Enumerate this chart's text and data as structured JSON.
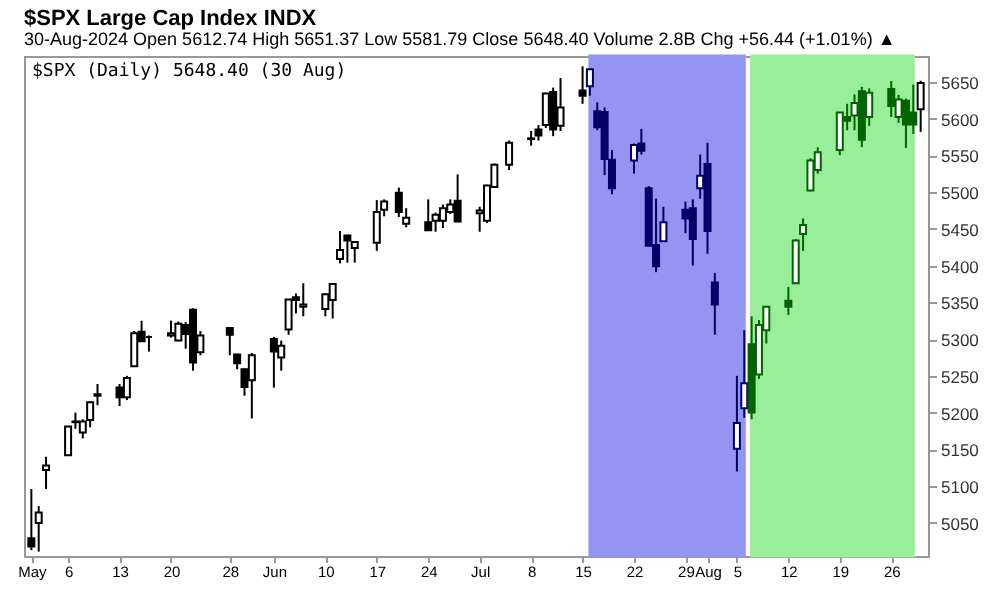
{
  "chart_data": {
    "type": "candlestick",
    "title": "$SPX Large Cap Index INDX",
    "subtitle": "30-Aug-2024  Open 5612.74  High 5651.37  Low 5581.79  Close 5648.40  Volume 2.8B  Chg +56.44 (+1.01%) ▲",
    "annotations": [
      "$SPX (Daily) 5648.40 (30 Aug)"
    ],
    "x": [
      "2024-05-01",
      "2024-05-02",
      "2024-05-03",
      "2024-05-06",
      "2024-05-07",
      "2024-05-08",
      "2024-05-09",
      "2024-05-10",
      "2024-05-13",
      "2024-05-14",
      "2024-05-15",
      "2024-05-16",
      "2024-05-17",
      "2024-05-20",
      "2024-05-21",
      "2024-05-22",
      "2024-05-23",
      "2024-05-24",
      "2024-05-28",
      "2024-05-29",
      "2024-05-30",
      "2024-05-31",
      "2024-06-03",
      "2024-06-04",
      "2024-06-05",
      "2024-06-06",
      "2024-06-07",
      "2024-06-10",
      "2024-06-11",
      "2024-06-12",
      "2024-06-13",
      "2024-06-14",
      "2024-06-17",
      "2024-06-18",
      "2024-06-20",
      "2024-06-21",
      "2024-06-24",
      "2024-06-25",
      "2024-06-26",
      "2024-06-27",
      "2024-06-28",
      "2024-07-01",
      "2024-07-02",
      "2024-07-03",
      "2024-07-05",
      "2024-07-08",
      "2024-07-09",
      "2024-07-10",
      "2024-07-11",
      "2024-07-12",
      "2024-07-15",
      "2024-07-16",
      "2024-07-17",
      "2024-07-18",
      "2024-07-19",
      "2024-07-22",
      "2024-07-23",
      "2024-07-24",
      "2024-07-25",
      "2024-07-26",
      "2024-07-29",
      "2024-07-30",
      "2024-07-31",
      "2024-08-01",
      "2024-08-02",
      "2024-08-05",
      "2024-08-06",
      "2024-08-07",
      "2024-08-08",
      "2024-08-09",
      "2024-08-12",
      "2024-08-13",
      "2024-08-14",
      "2024-08-15",
      "2024-08-16",
      "2024-08-19",
      "2024-08-20",
      "2024-08-21",
      "2024-08-22",
      "2024-08-23",
      "2024-08-26",
      "2024-08-27",
      "2024-08-28",
      "2024-08-29",
      "2024-08-30"
    ],
    "ohlc": [
      [
        5029,
        5096,
        5013,
        5018
      ],
      [
        5050,
        5073,
        5011,
        5064
      ],
      [
        5122,
        5140,
        5096,
        5128
      ],
      [
        5142,
        5181,
        5142,
        5181
      ],
      [
        5187,
        5200,
        5178,
        5188
      ],
      [
        5173,
        5191,
        5165,
        5188
      ],
      [
        5190,
        5215,
        5180,
        5214
      ],
      [
        5225,
        5239,
        5210,
        5223
      ],
      [
        5234,
        5239,
        5209,
        5221
      ],
      [
        5221,
        5250,
        5217,
        5247
      ],
      [
        5263,
        5311,
        5263,
        5308
      ],
      [
        5310,
        5325,
        5297,
        5297
      ],
      [
        5303,
        5305,
        5283,
        5303
      ],
      [
        5305,
        5325,
        5302,
        5308
      ],
      [
        5298,
        5324,
        5297,
        5321
      ],
      [
        5319,
        5323,
        5287,
        5307
      ],
      [
        5340,
        5342,
        5257,
        5268
      ],
      [
        5282,
        5311,
        5278,
        5305
      ],
      [
        5315,
        5316,
        5278,
        5306
      ],
      [
        5279,
        5280,
        5259,
        5267
      ],
      [
        5259,
        5260,
        5223,
        5235
      ],
      [
        5244,
        5281,
        5192,
        5278
      ],
      [
        5300,
        5303,
        5234,
        5283
      ],
      [
        5275,
        5298,
        5257,
        5291
      ],
      [
        5313,
        5354,
        5306,
        5354
      ],
      [
        5357,
        5362,
        5335,
        5353
      ],
      [
        5344,
        5376,
        5331,
        5347
      ],
      [
        5341,
        5362,
        5331,
        5361
      ],
      [
        5353,
        5375,
        5328,
        5375
      ],
      [
        5409,
        5447,
        5403,
        5421
      ],
      [
        5441,
        5442,
        5404,
        5434
      ],
      [
        5424,
        5432,
        5404,
        5432
      ],
      [
        5431,
        5489,
        5420,
        5473
      ],
      [
        5476,
        5490,
        5467,
        5487
      ],
      [
        5499,
        5506,
        5466,
        5473
      ],
      [
        5457,
        5478,
        5452,
        5465
      ],
      [
        5459,
        5490,
        5447,
        5448
      ],
      [
        5461,
        5472,
        5446,
        5469
      ],
      [
        5461,
        5483,
        5451,
        5478
      ],
      [
        5473,
        5490,
        5470,
        5483
      ],
      [
        5488,
        5524,
        5460,
        5460
      ],
      [
        5471,
        5480,
        5446,
        5475
      ],
      [
        5461,
        5510,
        5458,
        5509
      ],
      [
        5507,
        5539,
        5507,
        5537
      ],
      [
        5537,
        5570,
        5530,
        5567
      ],
      [
        5572,
        5583,
        5563,
        5573
      ],
      [
        5585,
        5591,
        5570,
        5577
      ],
      [
        5591,
        5635,
        5587,
        5634
      ],
      [
        5636,
        5642,
        5576,
        5585
      ],
      [
        5590,
        5655,
        5583,
        5615
      ],
      [
        5638,
        5671,
        5620,
        5631
      ],
      [
        5644,
        5667,
        5631,
        5667
      ],
      [
        5610,
        5622,
        5584,
        5588
      ],
      [
        5609,
        5615,
        5523,
        5545
      ],
      [
        5544,
        5557,
        5497,
        5505
      ],
      [
        5543,
        5566,
        5525,
        5564
      ],
      [
        5566,
        5586,
        5551,
        5556
      ],
      [
        5505,
        5508,
        5427,
        5427
      ],
      [
        5428,
        5491,
        5391,
        5399
      ],
      [
        5433,
        5480,
        5433,
        5459
      ],
      [
        5476,
        5487,
        5444,
        5464
      ],
      [
        5478,
        5490,
        5400,
        5436
      ],
      [
        5505,
        5551,
        5491,
        5522
      ],
      [
        5538,
        5567,
        5416,
        5447
      ],
      [
        5377,
        5390,
        5306,
        5347
      ],
      [
        5151,
        5250,
        5120,
        5186
      ],
      [
        5206,
        5312,
        5193,
        5240
      ],
      [
        5293,
        5331,
        5191,
        5200
      ],
      [
        5252,
        5326,
        5246,
        5319
      ],
      [
        5312,
        5345,
        5294,
        5344
      ],
      [
        5352,
        5371,
        5333,
        5344
      ],
      [
        5376,
        5436,
        5376,
        5434
      ],
      [
        5443,
        5464,
        5420,
        5455
      ],
      [
        5502,
        5546,
        5501,
        5543
      ],
      [
        5530,
        5561,
        5525,
        5554
      ],
      [
        5557,
        5608,
        5550,
        5608
      ],
      [
        5602,
        5620,
        5584,
        5597
      ],
      [
        5604,
        5633,
        5584,
        5621
      ],
      [
        5637,
        5643,
        5561,
        5571
      ],
      [
        5602,
        5641,
        5590,
        5635
      ],
      [
        5640,
        5651,
        5602,
        5617
      ],
      [
        5602,
        5632,
        5594,
        5626
      ],
      [
        5624,
        5627,
        5560,
        5592
      ],
      [
        5608,
        5646,
        5579,
        5592
      ],
      [
        5612.74,
        5651.37,
        5581.79,
        5648.4
      ]
    ],
    "colors": [
      "#000000",
      "#000000",
      "#000000",
      "#000000",
      "#000000",
      "#000000",
      "#000000",
      "#000000",
      "#000000",
      "#000000",
      "#000000",
      "#000000",
      "#000000",
      "#000000",
      "#000000",
      "#000000",
      "#000000",
      "#000000",
      "#000000",
      "#000000",
      "#000000",
      "#000000",
      "#000000",
      "#000000",
      "#000000",
      "#000000",
      "#000000",
      "#000000",
      "#000000",
      "#000000",
      "#000000",
      "#000000",
      "#000000",
      "#000000",
      "#000000",
      "#000000",
      "#000000",
      "#000000",
      "#000000",
      "#000000",
      "#000000",
      "#000000",
      "#000000",
      "#000000",
      "#000000",
      "#000000",
      "#000000",
      "#000000",
      "#000000",
      "#000000",
      "#000000",
      "#000066",
      "#000066",
      "#000066",
      "#000066",
      "#000066",
      "#000066",
      "#000066",
      "#000066",
      "#000066",
      "#000066",
      "#000066",
      "#000066",
      "#000066",
      "#000066",
      "#000066",
      "#000066",
      "#006400",
      "#006400",
      "#006400",
      "#006400",
      "#006400",
      "#006400",
      "#006400",
      "#006400",
      "#006400",
      "#006400",
      "#006400",
      "#006400",
      "#006400",
      "#006400",
      "#006400",
      "#006400",
      "#006400",
      "#000000"
    ],
    "xlim": [
      "2024-04-30",
      "2024-08-31"
    ],
    "xticks": [
      {
        "value": "2024-05-01",
        "label": "May"
      },
      {
        "value": "2024-05-06",
        "label": "6"
      },
      {
        "value": "2024-05-13",
        "label": "13"
      },
      {
        "value": "2024-05-20",
        "label": "20"
      },
      {
        "value": "2024-05-28",
        "label": "28"
      },
      {
        "value": "2024-06-03",
        "label": "Jun"
      },
      {
        "value": "2024-06-10",
        "label": "10"
      },
      {
        "value": "2024-06-17",
        "label": "17"
      },
      {
        "value": "2024-06-24",
        "label": "24"
      },
      {
        "value": "2024-07-01",
        "label": "Jul"
      },
      {
        "value": "2024-07-08",
        "label": "8"
      },
      {
        "value": "2024-07-15",
        "label": "15"
      },
      {
        "value": "2024-07-22",
        "label": "22"
      },
      {
        "value": "2024-07-29",
        "label": "29"
      },
      {
        "value": "2024-08-01",
        "label": "Aug"
      },
      {
        "value": "2024-08-05",
        "label": "5"
      },
      {
        "value": "2024-08-12",
        "label": "12"
      },
      {
        "value": "2024-08-19",
        "label": "19"
      },
      {
        "value": "2024-08-26",
        "label": "26"
      }
    ],
    "ylim": [
      5005,
      5685
    ],
    "yticks": [
      5050,
      5100,
      5150,
      5200,
      5250,
      5300,
      5350,
      5400,
      5450,
      5500,
      5550,
      5600,
      5650
    ],
    "bands": [
      {
        "axis": "x",
        "from": "2024-07-16",
        "to": "2024-08-06",
        "color": "#9494f2"
      },
      {
        "axis": "x",
        "from": "2024-08-07",
        "to": "2024-08-29",
        "color": "#99ee99"
      }
    ]
  }
}
